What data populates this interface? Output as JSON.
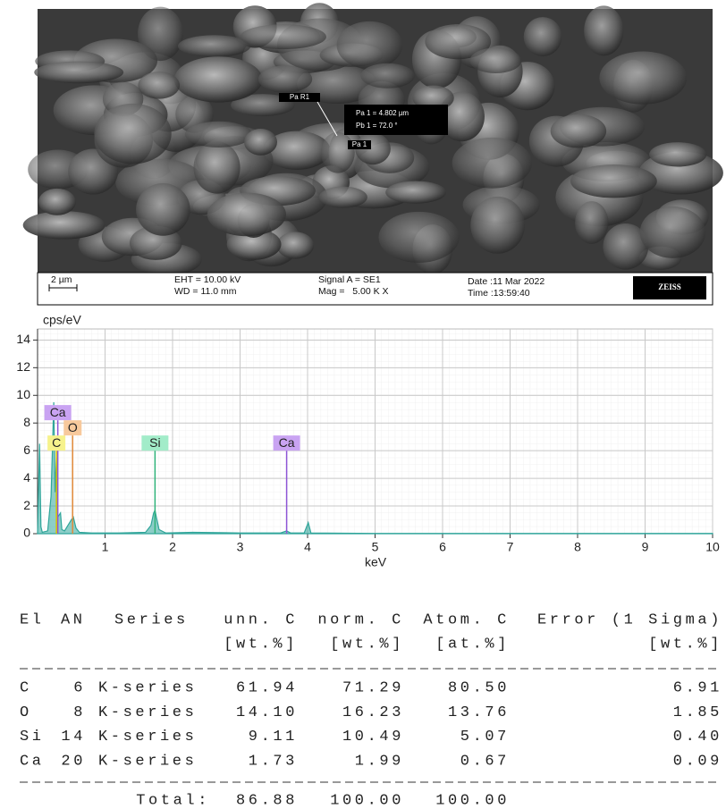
{
  "image": {
    "annotations": {
      "pa_r1": "Pa R1",
      "measure_1": "Pa 1 = 4.802 µm",
      "measure_2": "Pb 1 = 72.0 °",
      "pa_1": "Pa 1"
    },
    "info_bar": {
      "scale": "2 µm",
      "eht": "EHT = 10.00 kV",
      "wd": "WD = 11.0 mm",
      "signal": "Signal A = SE1",
      "mag": "Mag =   5.00 K X",
      "date": "Date :11 Mar 2022",
      "time": "Time :13:59:40",
      "brand": "ZEISS"
    }
  },
  "chart_data": {
    "type": "area",
    "y_label": "cps/eV",
    "x_label": "keV",
    "x": [
      0,
      0.03,
      0.05,
      0.07,
      0.15,
      0.2,
      0.24,
      0.26,
      0.28,
      0.3,
      0.34,
      0.36,
      0.4,
      0.45,
      0.5,
      0.53,
      0.57,
      0.62,
      0.8,
      1.2,
      1.6,
      1.68,
      1.72,
      1.74,
      1.76,
      1.8,
      1.9,
      2.3,
      3.0,
      3.6,
      3.69,
      3.75,
      3.95,
      4.01,
      4.05,
      5,
      7,
      10
    ],
    "values": [
      0,
      6.5,
      0.5,
      0.1,
      0.2,
      2.7,
      9.5,
      3,
      5.5,
      1.2,
      1.5,
      0.3,
      0.2,
      0.6,
      1.0,
      1.2,
      0.4,
      0.1,
      0.05,
      0.05,
      0.1,
      0.6,
      1.5,
      1.7,
      1.2,
      0.3,
      0.05,
      0.1,
      0.05,
      0.05,
      0.2,
      0.05,
      0.05,
      0.8,
      0.05,
      0.02,
      0.02,
      0.02
    ],
    "color": "#2fa59a",
    "markers": [
      {
        "label": "Ca",
        "x": 0.3,
        "height": 8.2,
        "color": "#c9a3f2",
        "line_color": "#8e55d6"
      },
      {
        "label": "C",
        "x": 0.28,
        "height": 6,
        "color": "#f6f28c",
        "line_color": "#d6c200"
      },
      {
        "label": "O",
        "x": 0.52,
        "height": 7.1,
        "color": "#f7c99c",
        "line_color": "#e08a3a"
      },
      {
        "label": "Si",
        "x": 1.74,
        "height": 6,
        "color": "#a2ecc9",
        "line_color": "#2fb27a"
      },
      {
        "label": "Ca",
        "x": 3.69,
        "height": 6,
        "color": "#c9a3f2",
        "line_color": "#8e55d6"
      }
    ],
    "xlim": [
      0,
      10
    ],
    "ylim": [
      0,
      14.8
    ],
    "xticks": [
      1,
      2,
      3,
      4,
      5,
      6,
      7,
      8,
      9,
      10
    ],
    "yticks": [
      0,
      2,
      4,
      6,
      8,
      10,
      12,
      14
    ],
    "grid": true
  },
  "table": {
    "columns": [
      "El",
      "AN",
      "Series",
      "unn. C",
      "norm. C",
      "Atom. C",
      "Error (1 Sigma)"
    ],
    "units": [
      "[wt.%]",
      "[wt.%]",
      "[at.%]",
      "[wt.%]"
    ],
    "rows": [
      [
        "C",
        "6",
        "K-series",
        "61.94",
        "71.29",
        "80.50",
        "6.91"
      ],
      [
        "O",
        "8",
        "K-series",
        "14.10",
        "16.23",
        "13.76",
        "1.85"
      ],
      [
        "Si",
        "14",
        "K-series",
        "9.11",
        "10.49",
        "5.07",
        "0.40"
      ],
      [
        "Ca",
        "20",
        "K-series",
        "1.73",
        "1.99",
        "0.67",
        "0.09"
      ]
    ],
    "total_label": "Total:",
    "totals": [
      "86.88",
      "100.00",
      "100.00"
    ]
  }
}
